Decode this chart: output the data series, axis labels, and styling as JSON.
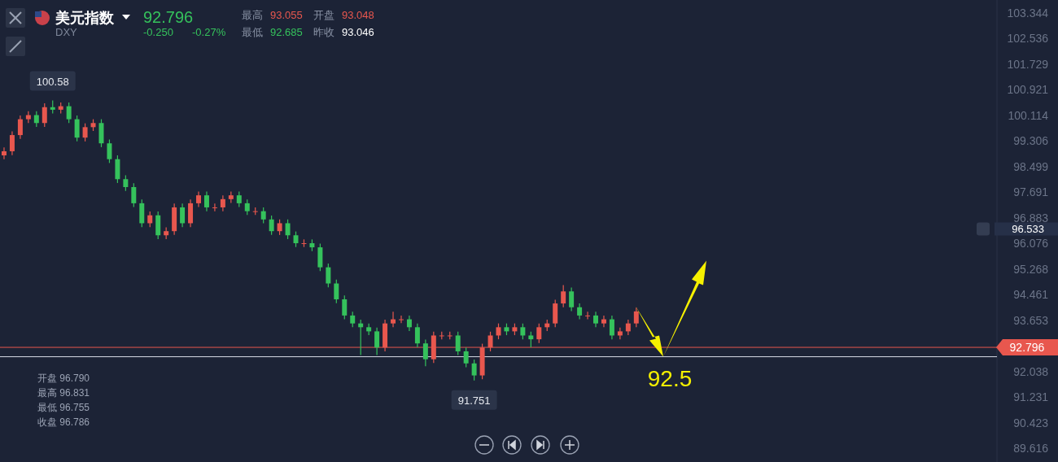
{
  "chart_data": {
    "type": "candlestick",
    "title": "美元指数",
    "subtitle": "DXY",
    "categories": [
      null,
      null,
      null,
      null,
      null,
      null,
      null,
      null,
      null,
      null,
      null,
      null,
      null,
      null,
      null,
      null,
      null,
      null,
      null,
      null,
      null,
      null,
      null,
      null,
      null,
      null,
      null,
      null,
      null,
      null,
      null,
      null,
      null,
      null,
      null,
      null,
      null,
      null,
      null,
      null,
      null,
      null,
      null,
      null,
      null,
      null,
      null,
      null,
      null,
      null,
      null,
      null,
      null,
      null,
      null,
      null,
      null,
      null,
      null,
      null,
      null,
      null,
      null,
      null,
      null,
      null,
      null,
      null,
      null,
      null,
      null,
      null,
      null,
      null,
      null,
      null,
      null,
      null,
      null,
      null,
      null,
      null,
      null,
      null,
      null,
      null,
      null,
      null,
      null,
      null,
      null,
      null,
      null,
      null,
      null,
      null,
      null,
      null,
      null,
      null,
      null,
      null,
      null,
      null,
      null,
      null,
      null,
      null,
      null,
      null,
      null,
      null,
      null,
      null,
      null,
      null,
      null,
      null,
      null,
      null,
      null,
      null,
      null
    ],
    "ohlc": [
      [
        98.85,
        99.1,
        98.73,
        98.98
      ],
      [
        98.98,
        99.61,
        98.86,
        99.49
      ],
      [
        99.49,
        100.11,
        99.37,
        99.99
      ],
      [
        99.99,
        100.24,
        99.87,
        100.12
      ],
      [
        100.12,
        100.24,
        99.75,
        99.87
      ],
      [
        99.87,
        100.49,
        99.75,
        100.37
      ],
      [
        100.37,
        100.58,
        100.17,
        100.29
      ],
      [
        100.29,
        100.52,
        100.17,
        100.4
      ],
      [
        100.4,
        100.52,
        99.87,
        99.99
      ],
      [
        99.99,
        100.11,
        99.29,
        99.41
      ],
      [
        99.41,
        99.86,
        99.29,
        99.74
      ],
      [
        99.74,
        99.99,
        99.62,
        99.87
      ],
      [
        99.87,
        99.99,
        99.11,
        99.23
      ],
      [
        99.23,
        99.35,
        98.61,
        98.73
      ],
      [
        98.73,
        98.85,
        97.98,
        98.1
      ],
      [
        98.1,
        98.22,
        97.73,
        97.85
      ],
      [
        97.85,
        97.97,
        97.22,
        97.34
      ],
      [
        97.34,
        97.46,
        96.59,
        96.71
      ],
      [
        96.71,
        97.08,
        96.59,
        96.96
      ],
      [
        96.96,
        97.08,
        96.21,
        96.33
      ],
      [
        96.33,
        96.58,
        96.21,
        96.46
      ],
      [
        96.46,
        97.33,
        96.34,
        97.21
      ],
      [
        97.21,
        97.33,
        96.59,
        96.71
      ],
      [
        96.71,
        97.46,
        96.59,
        97.34
      ],
      [
        97.34,
        97.71,
        97.22,
        97.59
      ],
      [
        97.59,
        97.71,
        97.09,
        97.21
      ],
      [
        97.21,
        97.33,
        97.09,
        97.21
      ],
      [
        97.21,
        97.59,
        97.09,
        97.47
      ],
      [
        97.47,
        97.71,
        97.35,
        97.59
      ],
      [
        97.59,
        97.71,
        97.22,
        97.34
      ],
      [
        97.34,
        97.46,
        96.97,
        97.09
      ],
      [
        97.09,
        97.21,
        96.97,
        97.09
      ],
      [
        97.09,
        97.21,
        96.71,
        96.83
      ],
      [
        96.83,
        96.95,
        96.34,
        96.46
      ],
      [
        96.46,
        96.83,
        96.34,
        96.71
      ],
      [
        96.71,
        96.83,
        96.21,
        96.33
      ],
      [
        96.33,
        96.45,
        95.96,
        96.08
      ],
      [
        96.08,
        96.2,
        95.96,
        96.08
      ],
      [
        96.08,
        96.2,
        95.83,
        95.95
      ],
      [
        95.95,
        96.07,
        95.2,
        95.32
      ],
      [
        95.32,
        95.44,
        94.69,
        94.81
      ],
      [
        94.81,
        94.93,
        94.19,
        94.31
      ],
      [
        94.31,
        94.43,
        93.68,
        93.8
      ],
      [
        93.8,
        93.92,
        93.43,
        93.55
      ],
      [
        93.55,
        93.67,
        92.55,
        93.43
      ],
      [
        93.43,
        93.55,
        93.18,
        93.3
      ],
      [
        93.3,
        93.42,
        92.55,
        92.79
      ],
      [
        92.79,
        93.67,
        92.67,
        93.55
      ],
      [
        93.55,
        93.92,
        93.43,
        93.68
      ],
      [
        93.68,
        93.8,
        93.56,
        93.68
      ],
      [
        93.68,
        93.8,
        93.31,
        93.43
      ],
      [
        93.43,
        93.55,
        92.8,
        92.92
      ],
      [
        92.92,
        93.04,
        92.2,
        92.42
      ],
      [
        92.42,
        93.29,
        92.3,
        93.17
      ],
      [
        93.17,
        93.29,
        93.05,
        93.17
      ],
      [
        93.17,
        93.29,
        93.05,
        93.17
      ],
      [
        93.17,
        93.29,
        92.55,
        92.67
      ],
      [
        92.67,
        92.79,
        92.17,
        92.29
      ],
      [
        92.29,
        92.41,
        91.751,
        91.91
      ],
      [
        91.91,
        92.91,
        91.79,
        92.79
      ],
      [
        92.79,
        93.29,
        92.67,
        93.17
      ],
      [
        93.17,
        93.55,
        93.05,
        93.43
      ],
      [
        93.43,
        93.55,
        93.18,
        93.3
      ],
      [
        93.3,
        93.55,
        93.18,
        93.43
      ],
      [
        93.43,
        93.55,
        93.05,
        93.17
      ],
      [
        93.17,
        93.29,
        92.8,
        93.05
      ],
      [
        93.05,
        93.55,
        92.93,
        93.43
      ],
      [
        93.43,
        93.67,
        93.31,
        93.55
      ],
      [
        93.55,
        94.3,
        93.43,
        94.18
      ],
      [
        94.18,
        94.76,
        94.06,
        94.56
      ],
      [
        94.56,
        94.68,
        93.94,
        94.06
      ],
      [
        94.06,
        94.18,
        93.68,
        93.8
      ],
      [
        93.8,
        93.92,
        93.68,
        93.8
      ],
      [
        93.8,
        93.92,
        93.43,
        93.55
      ],
      [
        93.55,
        93.8,
        93.43,
        93.68
      ],
      [
        93.68,
        93.8,
        93.05,
        93.17
      ],
      [
        93.17,
        93.42,
        93.05,
        93.3
      ],
      [
        93.3,
        93.67,
        93.18,
        93.55
      ],
      [
        93.55,
        94.05,
        93.43,
        93.93
      ],
      null,
      null,
      null,
      null,
      null,
      null,
      null,
      null,
      null,
      null,
      null,
      null,
      null,
      null,
      null,
      null,
      null,
      null,
      null,
      null,
      null,
      null,
      null,
      null,
      null,
      null,
      null,
      null,
      null,
      null,
      null,
      null,
      null,
      null,
      null,
      null,
      null,
      null,
      null,
      null,
      null,
      null,
      null,
      null
    ],
    "colors": [
      "#e8574e",
      "#e8574e",
      "#e8574e",
      "#e8574e",
      "#35c25c",
      "#e8574e",
      "#35c25c",
      "#e8574e",
      "#35c25c",
      "#35c25c",
      "#e8574e",
      "#e8574e",
      "#35c25c",
      "#35c25c",
      "#35c25c",
      "#35c25c",
      "#35c25c",
      "#35c25c",
      "#e8574e",
      "#35c25c",
      "#e8574e",
      "#e8574e",
      "#35c25c",
      "#e8574e",
      "#e8574e",
      "#35c25c",
      "#e8574e",
      "#e8574e",
      "#e8574e",
      "#35c25c",
      "#35c25c",
      "#e8574e",
      "#35c25c",
      "#35c25c",
      "#e8574e",
      "#35c25c",
      "#35c25c",
      "#e8574e",
      "#35c25c",
      "#35c25c",
      "#35c25c",
      "#35c25c",
      "#35c25c",
      "#35c25c",
      "#35c25c",
      "#35c25c",
      "#35c25c",
      "#e8574e",
      "#e8574e",
      "#e8574e",
      "#35c25c",
      "#35c25c",
      "#35c25c",
      "#e8574e",
      "#e8574e",
      "#e8574e",
      "#35c25c",
      "#35c25c",
      "#35c25c",
      "#e8574e",
      "#e8574e",
      "#e8574e",
      "#35c25c",
      "#e8574e",
      "#35c25c",
      "#35c25c",
      "#e8574e",
      "#e8574e",
      "#e8574e",
      "#e8574e",
      "#35c25c",
      "#35c25c",
      "#e8574e",
      "#35c25c",
      "#e8574e",
      "#35c25c",
      "#e8574e",
      "#e8574e",
      "#e8574e",
      null,
      null,
      null,
      null,
      null,
      null,
      null,
      null,
      null,
      null,
      null,
      null,
      null,
      null,
      null,
      null,
      null,
      null,
      null,
      null,
      null,
      null,
      null,
      null,
      null,
      null,
      null,
      null,
      null,
      null,
      null,
      null,
      null,
      null,
      null,
      null,
      null,
      null,
      null,
      null,
      null,
      null,
      null,
      null
    ],
    "ylim": [
      89.18,
      103.75
    ],
    "yticks": [
      103.344,
      102.536,
      101.729,
      100.921,
      100.114,
      99.306,
      98.499,
      97.691,
      96.883,
      96.076,
      95.268,
      94.461,
      93.653,
      92.038,
      91.231,
      90.423,
      89.616
    ],
    "ref_lines": [
      {
        "axis": "y",
        "value": 92.796,
        "label": "92.796",
        "color": "#e8574e"
      },
      {
        "axis": "y",
        "value": 92.5,
        "label": "92.5",
        "color": "#d8dce6"
      }
    ],
    "annotations": [
      "92.796",
      "-0.250",
      "-0.27%",
      "最高",
      "93.055",
      "开盘",
      "93.048",
      "最低",
      "92.685",
      "昨收",
      "93.046",
      "开盘 96.790",
      "最高 96.831",
      "最低 96.755",
      "收盘 96.786",
      "100.58",
      "91.751",
      "96.533"
    ],
    "grid": false
  }
}
